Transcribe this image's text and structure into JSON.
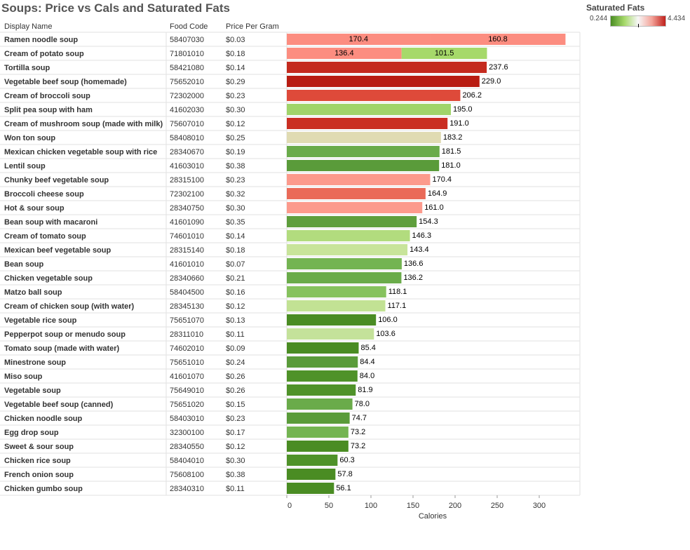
{
  "title": "Soups: Price vs Cals and Saturated Fats",
  "legend": {
    "title": "Saturated Fats",
    "min": "0.244",
    "max": "4.434"
  },
  "headers": {
    "name": "Display Name",
    "code": "Food Code",
    "price": "Price Per Gram"
  },
  "chart_data": {
    "type": "bar",
    "orientation": "horizontal",
    "xlabel": "Calories",
    "xlim": [
      0,
      330
    ],
    "xticks": [
      0,
      50,
      100,
      150,
      200,
      250,
      300
    ],
    "color_scale": {
      "name": "Saturated Fats",
      "min": 0.244,
      "max": 4.434
    },
    "rows": [
      {
        "name": "Ramen noodle soup",
        "code": "58407030",
        "price": "$0.03",
        "segments": [
          {
            "value": 170.4,
            "label": "170.4",
            "color": "#fc8d80"
          },
          {
            "value": 160.8,
            "label": "160.8",
            "color": "#fc8d80"
          }
        ]
      },
      {
        "name": "Cream of potato soup",
        "code": "71801010",
        "price": "$0.18",
        "segments": [
          {
            "value": 136.4,
            "label": "136.4",
            "color": "#fc8d80"
          },
          {
            "value": 101.5,
            "label": "101.5",
            "color": "#a6d96a"
          }
        ]
      },
      {
        "name": "Tortilla soup",
        "code": "58421080",
        "price": "$0.14",
        "segments": [
          {
            "value": 237.6,
            "label": "237.6",
            "color": "#c42a1e"
          }
        ]
      },
      {
        "name": "Vegetable beef soup (homemade)",
        "code": "75652010",
        "price": "$0.29",
        "segments": [
          {
            "value": 229.0,
            "label": "229.0",
            "color": "#b81c12"
          }
        ]
      },
      {
        "name": "Cream of broccoli soup",
        "code": "72302000",
        "price": "$0.23",
        "segments": [
          {
            "value": 206.2,
            "label": "206.2",
            "color": "#de4a3a"
          }
        ]
      },
      {
        "name": "Split pea soup with ham",
        "code": "41602030",
        "price": "$0.30",
        "segments": [
          {
            "value": 195.0,
            "label": "195.0",
            "color": "#a0d46a"
          }
        ]
      },
      {
        "name": "Cream of mushroom soup (made with milk)",
        "code": "75607010",
        "price": "$0.12",
        "segments": [
          {
            "value": 191.0,
            "label": "191.0",
            "color": "#ca2e22"
          }
        ]
      },
      {
        "name": "Won ton soup",
        "code": "58408010",
        "price": "$0.25",
        "segments": [
          {
            "value": 183.2,
            "label": "183.2",
            "color": "#e0dbb2"
          }
        ]
      },
      {
        "name": "Mexican chicken vegetable soup with rice",
        "code": "28340670",
        "price": "$0.19",
        "segments": [
          {
            "value": 181.5,
            "label": "181.5",
            "color": "#6aab4a"
          }
        ]
      },
      {
        "name": "Lentil soup",
        "code": "41603010",
        "price": "$0.38",
        "segments": [
          {
            "value": 181.0,
            "label": "181.0",
            "color": "#5a9b3a"
          }
        ]
      },
      {
        "name": "Chunky beef vegetable soup",
        "code": "28315100",
        "price": "$0.23",
        "segments": [
          {
            "value": 170.4,
            "label": "170.4",
            "color": "#fc9a8c"
          }
        ]
      },
      {
        "name": "Broccoli cheese soup",
        "code": "72302100",
        "price": "$0.32",
        "segments": [
          {
            "value": 164.9,
            "label": "164.9",
            "color": "#ea6a58"
          }
        ]
      },
      {
        "name": "Hot & sour soup",
        "code": "28340750",
        "price": "$0.30",
        "segments": [
          {
            "value": 161.0,
            "label": "161.0",
            "color": "#fc9a8c"
          }
        ]
      },
      {
        "name": "Bean soup with macaroni",
        "code": "41601090",
        "price": "$0.35",
        "segments": [
          {
            "value": 154.3,
            "label": "154.3",
            "color": "#5e9e3c"
          }
        ]
      },
      {
        "name": "Cream of tomato soup",
        "code": "74601010",
        "price": "$0.14",
        "segments": [
          {
            "value": 146.3,
            "label": "146.3",
            "color": "#b2dc7e"
          }
        ]
      },
      {
        "name": "Mexican beef vegetable soup",
        "code": "28315140",
        "price": "$0.18",
        "segments": [
          {
            "value": 143.4,
            "label": "143.4",
            "color": "#c8e49a"
          }
        ]
      },
      {
        "name": "Bean soup",
        "code": "41601010",
        "price": "$0.07",
        "segments": [
          {
            "value": 136.6,
            "label": "136.6",
            "color": "#74b452"
          }
        ]
      },
      {
        "name": "Chicken vegetable soup",
        "code": "28340660",
        "price": "$0.21",
        "segments": [
          {
            "value": 136.2,
            "label": "136.2",
            "color": "#6aab4a"
          }
        ]
      },
      {
        "name": "Matzo ball soup",
        "code": "58404500",
        "price": "$0.16",
        "segments": [
          {
            "value": 118.1,
            "label": "118.1",
            "color": "#86c25e"
          }
        ]
      },
      {
        "name": "Cream of chicken soup (with water)",
        "code": "28345130",
        "price": "$0.12",
        "segments": [
          {
            "value": 117.1,
            "label": "117.1",
            "color": "#c2e294"
          }
        ]
      },
      {
        "name": "Vegetable rice soup",
        "code": "75651070",
        "price": "$0.13",
        "segments": [
          {
            "value": 106.0,
            "label": "106.0",
            "color": "#4a8c23"
          }
        ]
      },
      {
        "name": "Pepperpot soup or menudo soup",
        "code": "28311010",
        "price": "$0.11",
        "segments": [
          {
            "value": 103.6,
            "label": "103.6",
            "color": "#c4e29a"
          }
        ]
      },
      {
        "name": "Tomato soup (made with water)",
        "code": "74602010",
        "price": "$0.09",
        "segments": [
          {
            "value": 85.4,
            "label": "85.4",
            "color": "#4a8c23"
          }
        ]
      },
      {
        "name": "Minestrone soup",
        "code": "75651010",
        "price": "$0.24",
        "segments": [
          {
            "value": 84.4,
            "label": "84.4",
            "color": "#5a9b3a"
          }
        ]
      },
      {
        "name": "Miso soup",
        "code": "41601070",
        "price": "$0.26",
        "segments": [
          {
            "value": 84.0,
            "label": "84.0",
            "color": "#4f9229"
          }
        ]
      },
      {
        "name": "Vegetable soup",
        "code": "75649010",
        "price": "$0.26",
        "segments": [
          {
            "value": 81.9,
            "label": "81.9",
            "color": "#4f9229"
          }
        ]
      },
      {
        "name": "Vegetable beef soup (canned)",
        "code": "75651020",
        "price": "$0.15",
        "segments": [
          {
            "value": 78.0,
            "label": "78.0",
            "color": "#6aab4a"
          }
        ]
      },
      {
        "name": "Chicken noodle soup",
        "code": "58403010",
        "price": "$0.23",
        "segments": [
          {
            "value": 74.7,
            "label": "74.7",
            "color": "#5a9b3a"
          }
        ]
      },
      {
        "name": "Egg drop soup",
        "code": "32300100",
        "price": "$0.17",
        "segments": [
          {
            "value": 73.2,
            "label": "73.2",
            "color": "#74b452"
          }
        ]
      },
      {
        "name": "Sweet & sour soup",
        "code": "28340550",
        "price": "$0.12",
        "segments": [
          {
            "value": 73.2,
            "label": "73.2",
            "color": "#4a8c23"
          }
        ]
      },
      {
        "name": "Chicken rice soup",
        "code": "58404010",
        "price": "$0.30",
        "segments": [
          {
            "value": 60.3,
            "label": "60.3",
            "color": "#4f9229"
          }
        ]
      },
      {
        "name": "French onion soup",
        "code": "75608100",
        "price": "$0.38",
        "segments": [
          {
            "value": 57.8,
            "label": "57.8",
            "color": "#4a8c23"
          }
        ]
      },
      {
        "name": "Chicken gumbo soup",
        "code": "28340310",
        "price": "$0.11",
        "segments": [
          {
            "value": 56.1,
            "label": "56.1",
            "color": "#4a8c23"
          }
        ]
      }
    ]
  }
}
